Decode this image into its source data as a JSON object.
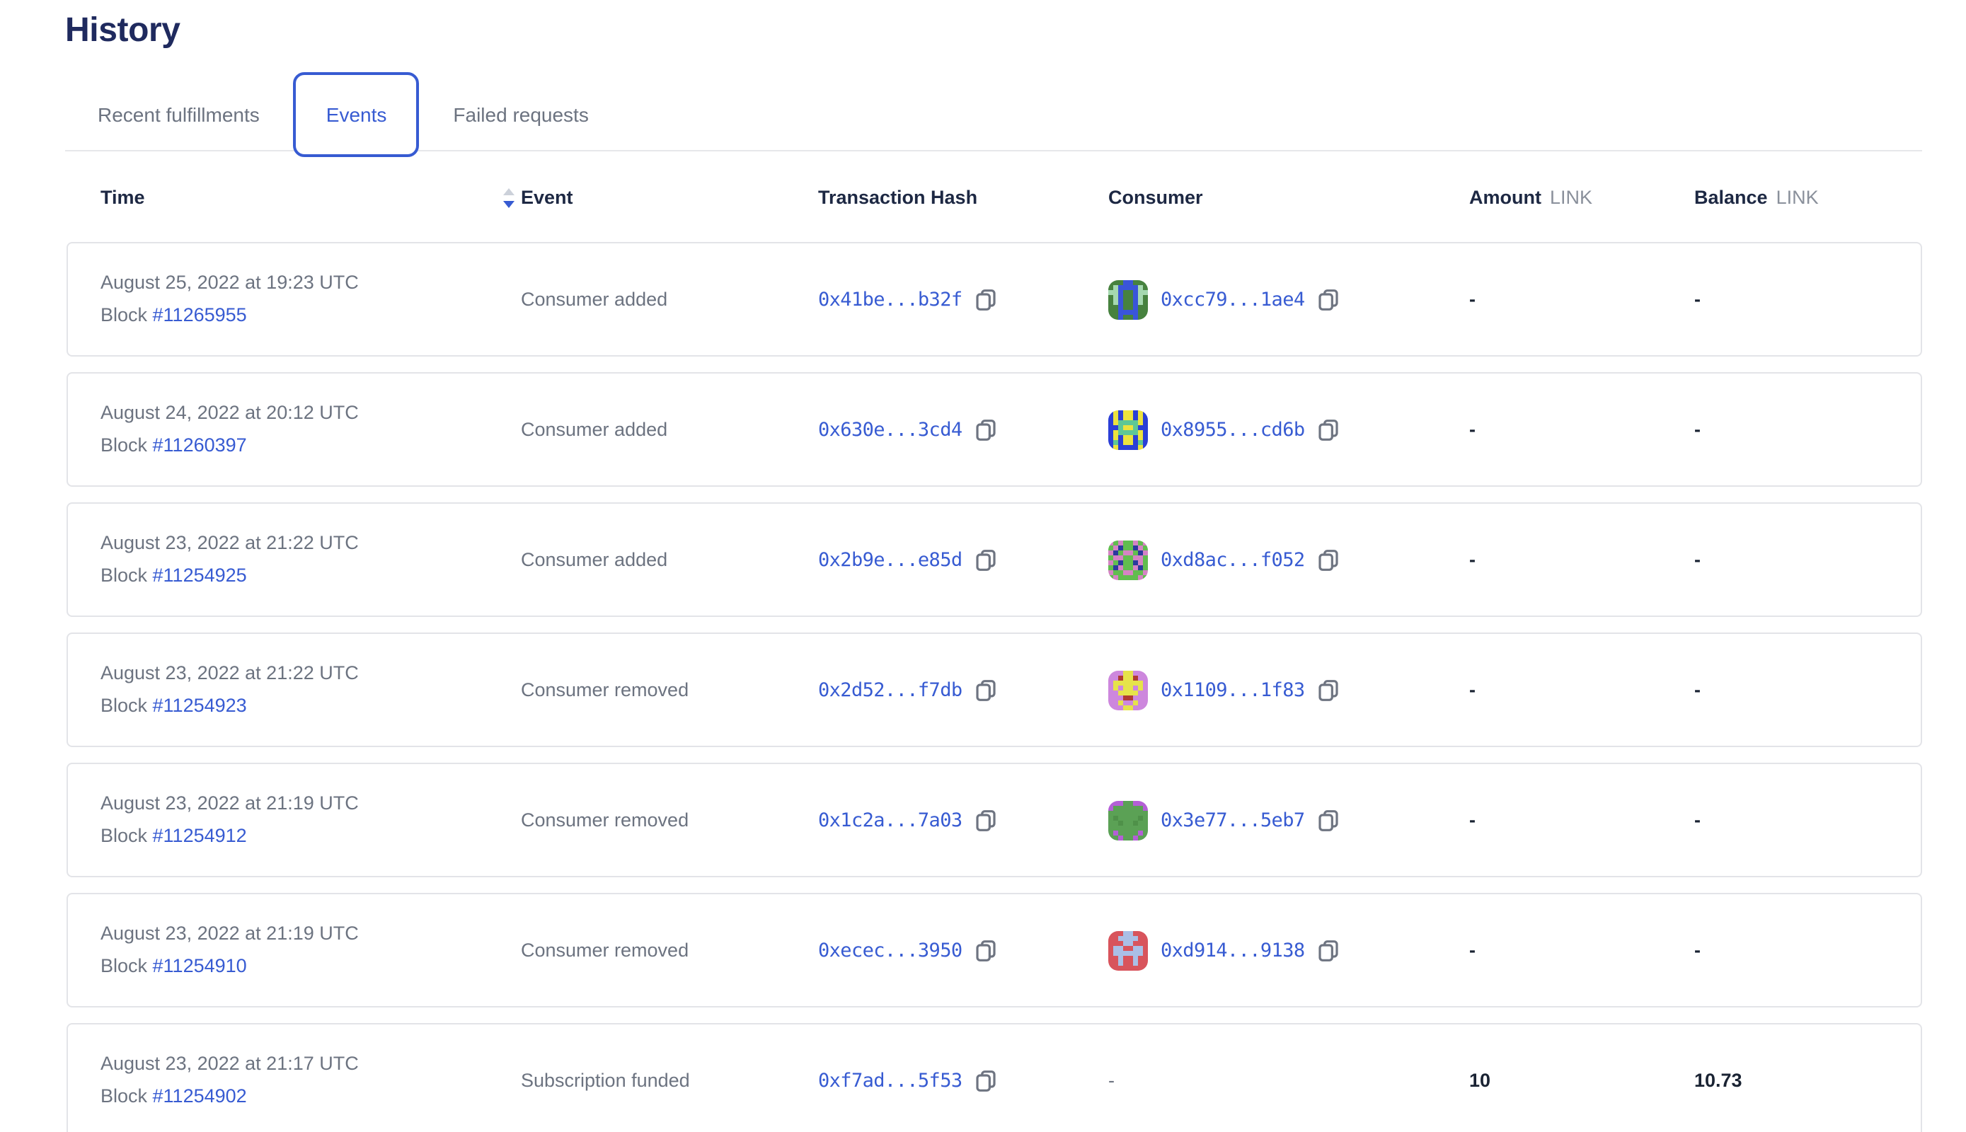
{
  "page": {
    "title": "History"
  },
  "tabs": [
    {
      "id": "recent-fulfillments",
      "label": "Recent fulfillments",
      "active": false
    },
    {
      "id": "events",
      "label": "Events",
      "active": true
    },
    {
      "id": "failed-requests",
      "label": "Failed requests",
      "active": false
    }
  ],
  "colors": {
    "accent_blue": "#375bd2",
    "heading_navy": "#1f2a5e",
    "text_gray": "#6c7380",
    "value_dark": "#1a2333",
    "sort_inactive": "#ccd1da",
    "card_border": "#e3e4e8"
  },
  "table": {
    "headers": {
      "time": "Time",
      "event": "Event",
      "tx_hash": "Transaction Hash",
      "consumer": "Consumer",
      "amount": "Amount",
      "balance": "Balance",
      "link_unit": "LINK",
      "block_label": "Block"
    },
    "sort": {
      "column": "time",
      "direction": "desc"
    },
    "rows": [
      {
        "time": "August 25, 2022 at 19:23 UTC",
        "block": "#11265955",
        "event": "Consumer added",
        "tx_hash": "0x41be...b32f",
        "consumer": "0xcc79...1ae4",
        "amount": "-",
        "balance": "-",
        "avatar": {
          "palette": {
            "g": "#47823f",
            "b": "#3a55d9",
            "m": "#a5d8b0"
          },
          "pattern": [
            "gggbbggg",
            "gmbbbbmg",
            "mmbggbmm",
            "gmbggbmg",
            "gmbggbmg",
            "ggbggbgg",
            "ggbbbbgg",
            "ggbggbgg"
          ]
        }
      },
      {
        "time": "August 24, 2022 at 20:12 UTC",
        "block": "#11260397",
        "event": "Consumer added",
        "tx_hash": "0x630e...3cd4",
        "consumer": "0x8955...cd6b",
        "amount": "-",
        "balance": "-",
        "avatar": {
          "palette": {
            "b": "#2b3fd6",
            "y": "#ece23e",
            "t": "#5fc795"
          },
          "pattern": [
            "bybyybyb",
            "bybyybyb",
            "byttttyb",
            "bbtyytbb",
            "byttttyb",
            "bybyybyb",
            "btbyybtb",
            "bybbbbyb"
          ]
        }
      },
      {
        "time": "August 23, 2022 at 21:22 UTC",
        "block": "#11254925",
        "event": "Consumer added",
        "tx_hash": "0x2b9e...e85d",
        "consumer": "0xd8ac...f052",
        "amount": "-",
        "balance": "-",
        "avatar": {
          "palette": {
            "g": "#61bd4f",
            "p": "#d583c4",
            "n": "#2b3a9e"
          },
          "pattern": [
            "pgpggpgp",
            "gpnggnpg",
            "pngppgnp",
            "gppggppg",
            "pgnggnpg",
            "gnpggpng",
            "pggppggp",
            "gpggggpg"
          ]
        }
      },
      {
        "time": "August 23, 2022 at 21:22 UTC",
        "block": "#11254923",
        "event": "Consumer removed",
        "tx_hash": "0x2d52...f7db",
        "consumer": "0x1109...1f83",
        "amount": "-",
        "balance": "-",
        "avatar": {
          "palette": {
            "v": "#cd87dd",
            "y": "#e6e34a",
            "r": "#b03a32"
          },
          "pattern": [
            "vvvyyvvv",
            "vvryyrvv",
            "vyyyyyyv",
            "vyvyyvyv",
            "vvyyyyvv",
            "vvvrrvvv",
            "vvyvvyvv",
            "vvvyyvvv"
          ]
        }
      },
      {
        "time": "August 23, 2022 at 21:19 UTC",
        "block": "#11254912",
        "event": "Consumer removed",
        "tx_hash": "0x1c2a...7a03",
        "consumer": "0x3e77...5eb7",
        "amount": "-",
        "balance": "-",
        "avatar": {
          "palette": {
            "g": "#5ba155",
            "p": "#b45fd6",
            "d": "#4f9149"
          },
          "pattern": [
            "pppggppp",
            "pggggggp",
            "gggggggg",
            "gdggggdg",
            "ggdggdgg",
            "gggggggg",
            "gpggggpg",
            "ggpggpgg"
          ]
        }
      },
      {
        "time": "August 23, 2022 at 21:19 UTC",
        "block": "#11254910",
        "event": "Consumer removed",
        "tx_hash": "0xecec...3950",
        "consumer": "0xd914...9138",
        "amount": "-",
        "balance": "-",
        "avatar": {
          "palette": {
            "r": "#d8545c",
            "l": "#aabfe6"
          },
          "pattern": [
            "rrrllrrr",
            "rrllllrr",
            "rrrllrrr",
            "rllrrllr",
            "rllllllr",
            "rrlrrlrr",
            "rrlrrlrr",
            "rrrrrrrr"
          ]
        }
      },
      {
        "time": "August 23, 2022 at 21:17 UTC",
        "block": "#11254902",
        "event": "Subscription funded",
        "tx_hash": "0xf7ad...5f53",
        "consumer": "-",
        "amount": "10",
        "balance": "10.73",
        "avatar": null
      }
    ]
  }
}
